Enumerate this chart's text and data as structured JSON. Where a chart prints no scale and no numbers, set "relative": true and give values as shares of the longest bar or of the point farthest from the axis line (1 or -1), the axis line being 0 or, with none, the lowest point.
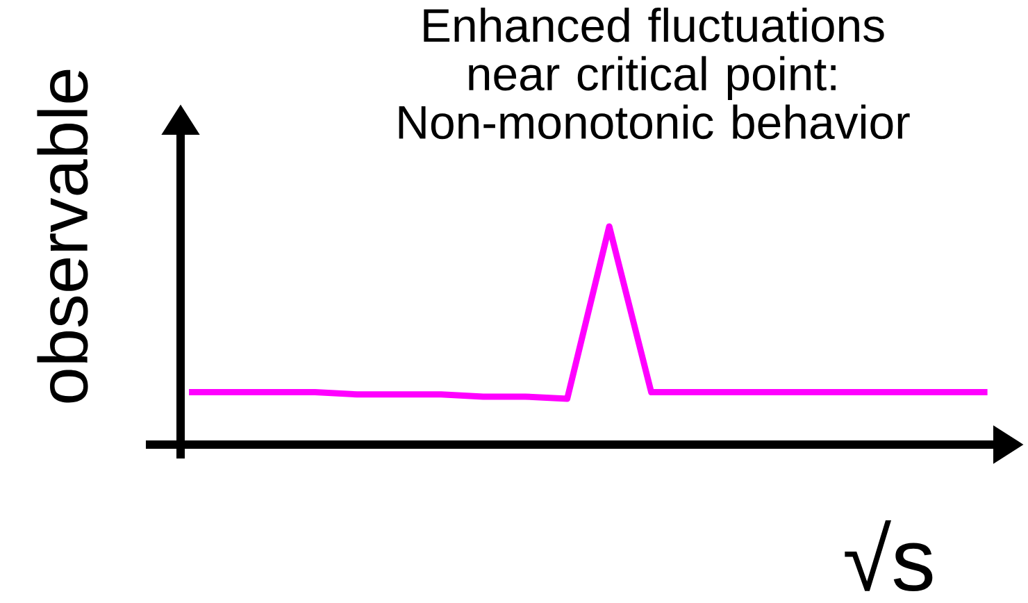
{
  "chart_data": {
    "type": "line",
    "relative": true,
    "title": "Enhanced fluctuations near critical point: Non-monotonic behavior",
    "xlabel": "√s",
    "ylabel": "observable",
    "categories": [
      null,
      null,
      null,
      null,
      null,
      null,
      null,
      null,
      null,
      null,
      null,
      null,
      null,
      null,
      null,
      null,
      null,
      null,
      null,
      null
    ],
    "series": [
      {
        "color": "#ff00ff",
        "values": [
          0.24,
          0.24,
          0.24,
          0.24,
          0.23,
          0.23,
          0.23,
          0.22,
          0.22,
          0.21,
          1,
          0.24,
          0.24,
          0.24,
          0.24,
          0.24,
          0.24,
          0.24,
          0.24,
          0.24
        ]
      }
    ]
  }
}
